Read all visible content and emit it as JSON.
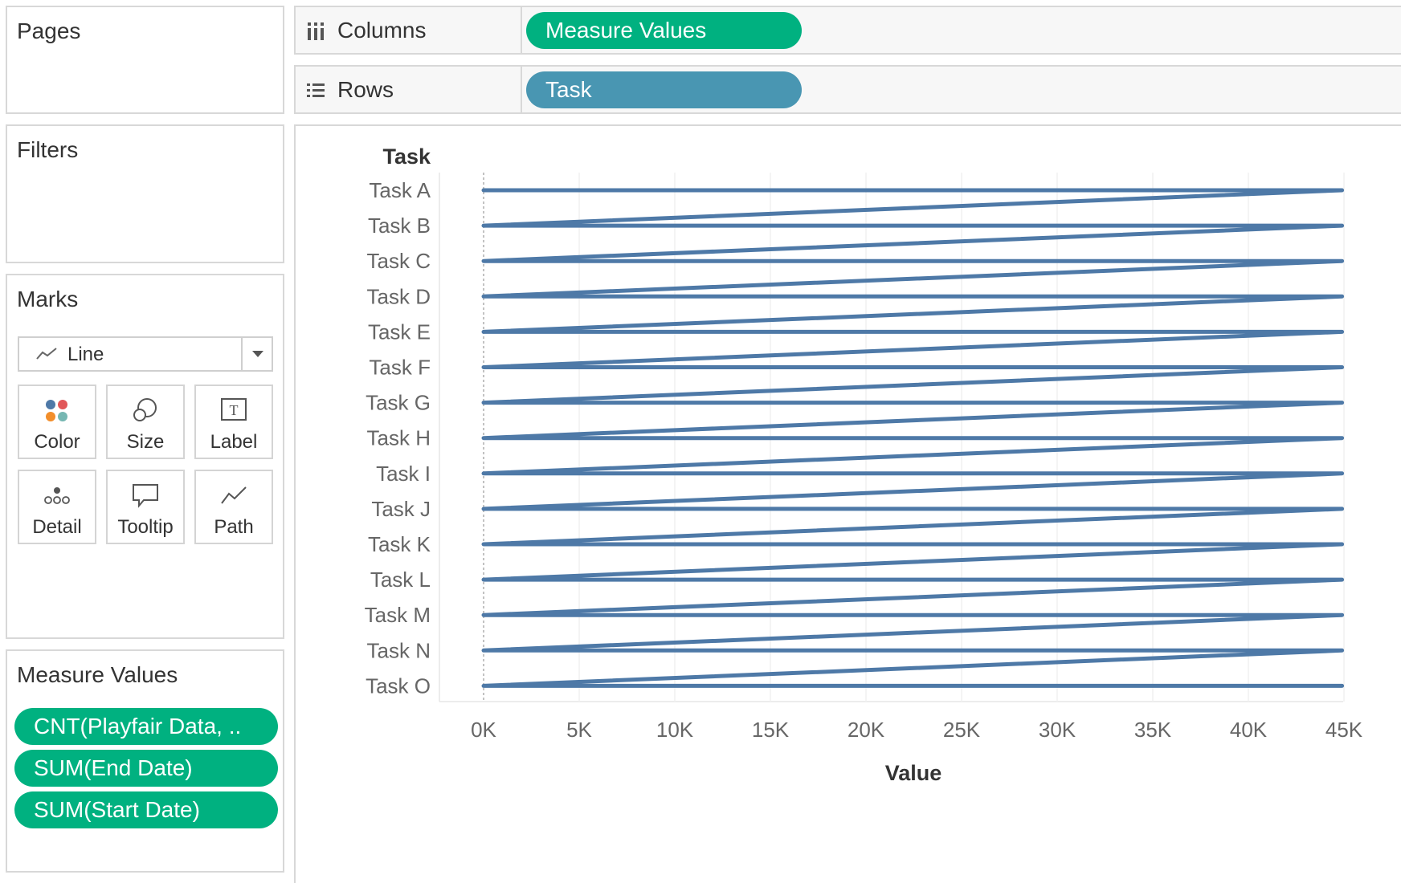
{
  "left_panel": {
    "pages": {
      "title": "Pages"
    },
    "filters": {
      "title": "Filters"
    },
    "marks": {
      "title": "Marks",
      "mark_type": "Line",
      "buttons": [
        {
          "label": "Color",
          "icon": "color-icon"
        },
        {
          "label": "Size",
          "icon": "size-icon"
        },
        {
          "label": "Label",
          "icon": "label-icon"
        },
        {
          "label": "Detail",
          "icon": "detail-icon"
        },
        {
          "label": "Tooltip",
          "icon": "tooltip-icon"
        },
        {
          "label": "Path",
          "icon": "path-icon"
        }
      ]
    },
    "measure_values": {
      "title": "Measure Values",
      "pills": [
        "CNT(Playfair Data, ..",
        "SUM(End Date)",
        "SUM(Start Date)"
      ]
    }
  },
  "shelves": {
    "columns": {
      "label": "Columns",
      "pill": "Measure Values",
      "pill_color": "#00b180"
    },
    "rows": {
      "label": "Rows",
      "pill": "Task",
      "pill_color": "#4996b2"
    }
  },
  "chart_data": {
    "type": "line",
    "row_header": "Task",
    "categories": [
      "Task A",
      "Task B",
      "Task C",
      "Task D",
      "Task E",
      "Task F",
      "Task G",
      "Task H",
      "Task I",
      "Task J",
      "Task K",
      "Task L",
      "Task M",
      "Task N",
      "Task O"
    ],
    "xlabel": "Value",
    "x_ticks": [
      0,
      5000,
      10000,
      15000,
      20000,
      25000,
      30000,
      35000,
      40000,
      45000
    ],
    "x_tick_labels": [
      "0K",
      "5K",
      "10K",
      "15K",
      "20K",
      "25K",
      "30K",
      "35K",
      "40K",
      "45K"
    ],
    "xlim": [
      0,
      45000
    ],
    "line_color": "#4e79a7",
    "series": [
      {
        "values": [
          [
            0,
            44900
          ],
          [
            0,
            44900
          ],
          [
            0,
            44900
          ],
          [
            0,
            44900
          ],
          [
            0,
            44900
          ],
          [
            0,
            44900
          ],
          [
            0,
            44900
          ],
          [
            0,
            44900
          ],
          [
            0,
            44900
          ],
          [
            0,
            44900
          ],
          [
            0,
            44900
          ],
          [
            0,
            44900
          ],
          [
            0,
            44900
          ],
          [
            0,
            44900
          ],
          [
            0,
            44900
          ]
        ]
      }
    ],
    "path_order": "each task from 0K to ~45K, then back to 0K at next task",
    "grid": true
  }
}
